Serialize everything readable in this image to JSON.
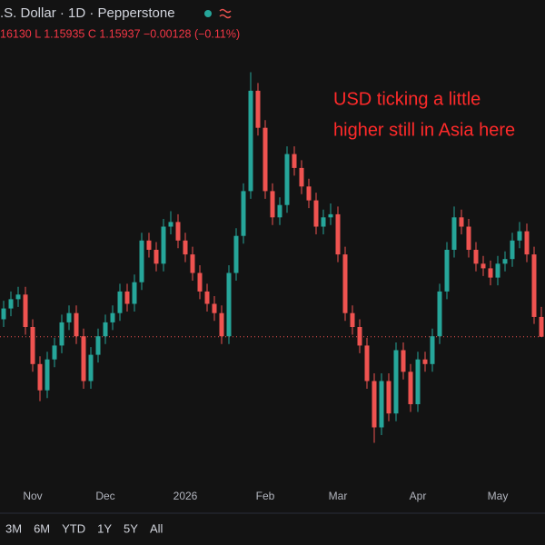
{
  "chart_data": {
    "type": "candlestick",
    "title": ".S. Dollar · 1D · Pepperstone",
    "subtitle": "16130 L 1.15935 C 1.15937 −0.00128 (−0.11%)",
    "annotation": [
      "USD ticking a little",
      "higher still in Asia here"
    ],
    "up_color": "#26a69a",
    "down_color": "#ef5350",
    "price_line": true,
    "ylim": [
      1.15,
      1.18
    ],
    "categories": [
      null,
      null,
      null,
      null,
      "Nov",
      null,
      null,
      null,
      null,
      null,
      null,
      null,
      null,
      null,
      "Dec",
      null,
      null,
      null,
      null,
      null,
      null,
      null,
      null,
      null,
      null,
      "2026",
      null,
      null,
      null,
      null,
      null,
      null,
      null,
      null,
      null,
      null,
      "Feb",
      null,
      null,
      null,
      null,
      null,
      null,
      null,
      null,
      null,
      "Mar",
      null,
      null,
      null,
      null,
      null,
      null,
      null,
      null,
      null,
      null,
      "Apr",
      null,
      null,
      null,
      null,
      null,
      null,
      null,
      null,
      null,
      null,
      "May",
      null,
      null,
      null,
      null,
      null,
      null
    ],
    "open": [
      1.1605,
      1.1612,
      1.1618,
      1.1621,
      1.16,
      1.1576,
      1.1559,
      1.1579,
      1.1588,
      1.1603,
      1.1609,
      1.1594,
      1.1565,
      1.1582,
      1.1594,
      1.1603,
      1.1609,
      1.1623,
      1.1615,
      1.1629,
      1.1656,
      1.165,
      1.1641,
      1.1665,
      1.1668,
      1.1656,
      1.1647,
      1.1635,
      1.1623,
      1.1615,
      1.1609,
      1.1594,
      1.1635,
      1.1659,
      1.1688,
      1.1753,
      1.1729,
      1.1688,
      1.1671,
      1.1679,
      1.1712,
      1.1703,
      1.1691,
      1.1682,
      1.1665,
      1.1671,
      1.1673,
      1.1647,
      1.1609,
      1.16,
      1.1588,
      1.1565,
      1.1535,
      1.1565,
      1.1544,
      1.1585,
      1.1571,
      1.155,
      1.1579,
      1.1576,
      1.1594,
      1.1623,
      1.165,
      1.1671,
      1.1665,
      1.165,
      1.1641,
      1.1638,
      1.1632,
      1.1641,
      1.1644,
      1.1656,
      1.1662,
      1.1647,
      1.16065
    ],
    "high": [
      1.1617,
      1.1623,
      1.1626,
      1.1626,
      1.1605,
      1.1581,
      1.1584,
      1.1593,
      1.1608,
      1.1614,
      1.1614,
      1.1599,
      1.1587,
      1.1599,
      1.1608,
      1.1614,
      1.1628,
      1.1628,
      1.1634,
      1.1661,
      1.1661,
      1.1655,
      1.167,
      1.1675,
      1.1673,
      1.1661,
      1.1652,
      1.164,
      1.1628,
      1.162,
      1.1614,
      1.164,
      1.1664,
      1.1693,
      1.1765,
      1.1758,
      1.1734,
      1.1693,
      1.1684,
      1.1717,
      1.1717,
      1.1708,
      1.1696,
      1.1687,
      1.1676,
      1.168,
      1.1678,
      1.1652,
      1.1614,
      1.1605,
      1.1593,
      1.157,
      1.157,
      1.157,
      1.159,
      1.159,
      1.1576,
      1.1584,
      1.1584,
      1.1599,
      1.1628,
      1.1655,
      1.1678,
      1.1676,
      1.167,
      1.1655,
      1.1646,
      1.1643,
      1.1646,
      1.1649,
      1.1661,
      1.1668,
      1.1667,
      1.1652,
      1.1613
    ],
    "low": [
      1.16,
      1.1607,
      1.1613,
      1.1595,
      1.1571,
      1.1552,
      1.1554,
      1.1574,
      1.1583,
      1.1598,
      1.1589,
      1.156,
      1.156,
      1.1577,
      1.1589,
      1.1598,
      1.1604,
      1.161,
      1.161,
      1.1624,
      1.1645,
      1.1636,
      1.1636,
      1.166,
      1.1651,
      1.1642,
      1.163,
      1.1618,
      1.161,
      1.1604,
      1.1589,
      1.1589,
      1.163,
      1.1654,
      1.1683,
      1.1724,
      1.1683,
      1.1666,
      1.1666,
      1.1674,
      1.1698,
      1.1686,
      1.1677,
      1.166,
      1.166,
      1.1666,
      1.1642,
      1.1604,
      1.1595,
      1.1583,
      1.156,
      1.1525,
      1.153,
      1.1539,
      1.1539,
      1.1566,
      1.1545,
      1.1545,
      1.1571,
      1.1571,
      1.1589,
      1.1618,
      1.1645,
      1.166,
      1.1645,
      1.1636,
      1.1633,
      1.1627,
      1.1627,
      1.1636,
      1.1639,
      1.1651,
      1.1642,
      1.1602,
      1.15935
    ],
    "close": [
      1.1612,
      1.1618,
      1.1621,
      1.16,
      1.1576,
      1.1559,
      1.1579,
      1.1588,
      1.1603,
      1.1609,
      1.1594,
      1.1565,
      1.1582,
      1.1594,
      1.1603,
      1.1609,
      1.1623,
      1.1615,
      1.1629,
      1.1656,
      1.165,
      1.1641,
      1.1665,
      1.1668,
      1.1656,
      1.1647,
      1.1635,
      1.1623,
      1.1615,
      1.1609,
      1.1594,
      1.1635,
      1.1659,
      1.1688,
      1.1753,
      1.1729,
      1.1688,
      1.1671,
      1.1679,
      1.1712,
      1.1703,
      1.1691,
      1.1682,
      1.1665,
      1.1671,
      1.1673,
      1.1647,
      1.1609,
      1.16,
      1.1588,
      1.1565,
      1.1535,
      1.1565,
      1.1544,
      1.1585,
      1.1571,
      1.155,
      1.1579,
      1.1576,
      1.1594,
      1.1623,
      1.165,
      1.1671,
      1.1665,
      1.165,
      1.1641,
      1.1638,
      1.1632,
      1.1641,
      1.1644,
      1.1656,
      1.1662,
      1.1647,
      1.16065,
      1.15937
    ],
    "range_buttons": [
      "3M",
      "6M",
      "YTD",
      "1Y",
      "5Y",
      "All"
    ]
  }
}
